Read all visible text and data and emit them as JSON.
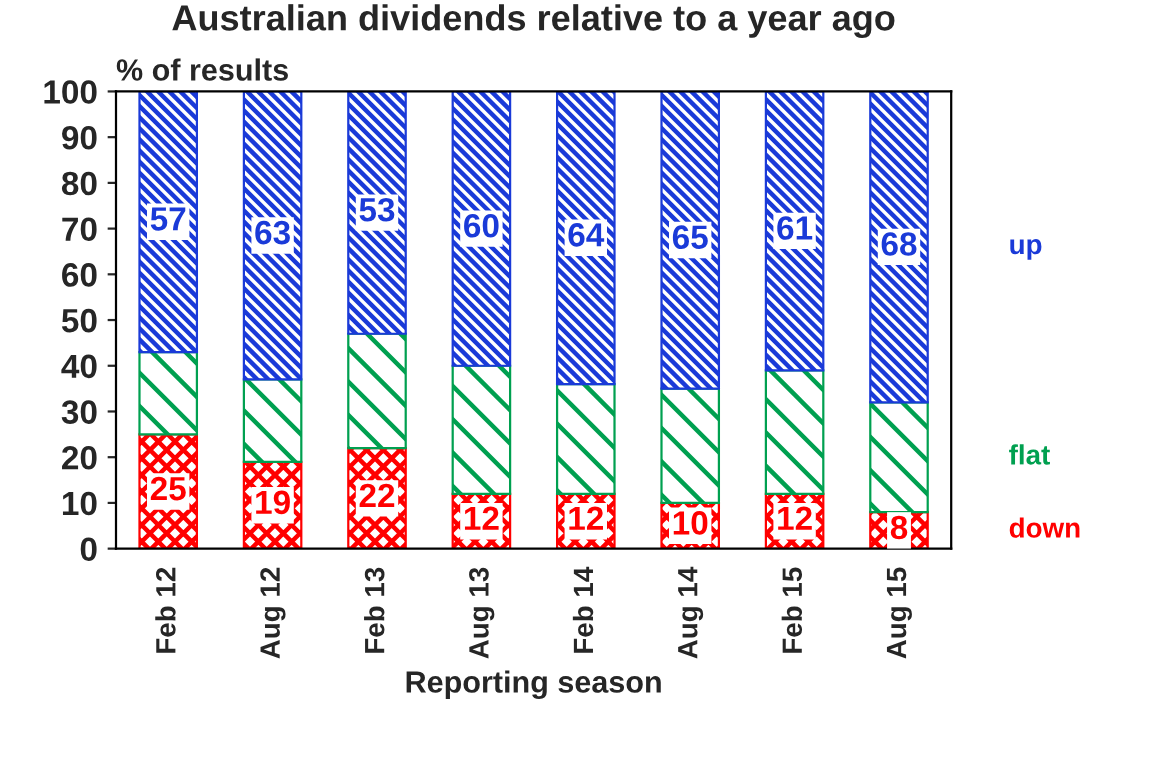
{
  "chart_data": {
    "type": "bar",
    "title": "Australian dividends relative to a year ago",
    "xlabel": "Reporting season",
    "ylabel": "% of results",
    "categories": [
      "Feb 12",
      "Aug 12",
      "Feb 13",
      "Aug 13",
      "Feb 14",
      "Aug 14",
      "Feb 15",
      "Aug 15"
    ],
    "stacked": true,
    "series": [
      {
        "name": "down",
        "color": "#ff0000",
        "values": [
          25,
          19,
          22,
          12,
          12,
          10,
          12,
          8
        ],
        "value_labels": [
          "25",
          "19",
          "22",
          "12",
          "12",
          "10",
          "12",
          "8"
        ]
      },
      {
        "name": "flat",
        "color": "#00a050",
        "values": [
          18,
          18,
          25,
          28,
          24,
          25,
          27,
          24
        ]
      },
      {
        "name": "up",
        "color": "#1a3ad8",
        "values": [
          57,
          63,
          53,
          60,
          64,
          65,
          61,
          68
        ],
        "value_labels": [
          "57",
          "63",
          "53",
          "60",
          "64",
          "65",
          "61",
          "68"
        ]
      }
    ],
    "ylim": [
      0,
      100
    ],
    "yticks": [
      0,
      10,
      20,
      30,
      40,
      50,
      60,
      70,
      80,
      90,
      100
    ],
    "grid": false,
    "legend": "right"
  }
}
